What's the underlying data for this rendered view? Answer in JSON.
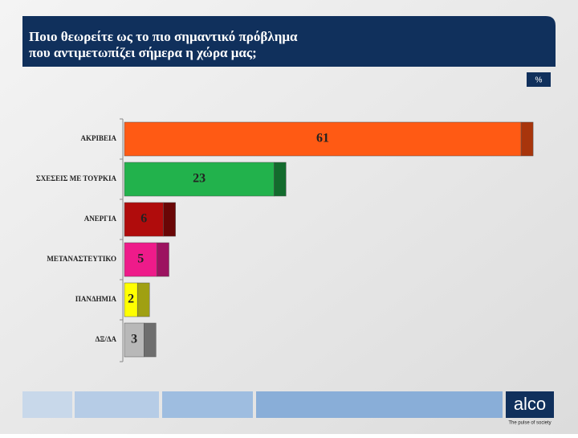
{
  "chart_data": {
    "type": "bar",
    "orientation": "horizontal",
    "title": [
      "Ποιο θεωρείτε ως το πιο σημαντικό πρόβλημα",
      "που αντιμετωπίζει σήμερα η χώρα μας;"
    ],
    "unit_badge": "%",
    "categories": [
      "ΑΚΡΙΒΕΙΑ",
      "ΣΧΕΣΕΙΣ  ΜΕ  ΤΟΥΡΚΙΑ",
      "ΑΝΕΡΓΙΑ",
      "ΜΕΤΑΝΑΣΤΕΥΤΙΚΟ",
      "ΠΑΝΔΗΜΙΑ",
      "ΔΞ/ΔΑ"
    ],
    "values": [
      61,
      23,
      6,
      5,
      2,
      3
    ],
    "colors": [
      "#ff5a14",
      "#22b24c",
      "#b00c0c",
      "#ee1b8a",
      "#ffff00",
      "#b8b8b8"
    ],
    "shade_colors": [
      "#a8350c",
      "#136b2d",
      "#6a0606",
      "#9c1360",
      "#a0a012",
      "#6e6e6e"
    ]
  },
  "footer": {
    "logo": "alco",
    "tagline": "The pulse of society"
  }
}
